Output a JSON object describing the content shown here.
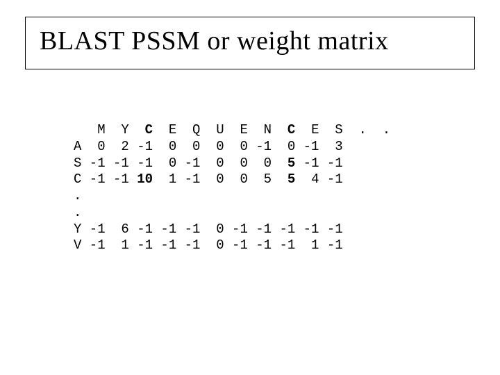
{
  "title": "BLAST PSSM or weight matrix",
  "matrix": {
    "hdr_lead": "   M  Y  ",
    "hdr_C": "C",
    "hdr_mid": "  E  Q  U  E  N  ",
    "hdr_C2": "C",
    "hdr_tail": "  E  S  .  .",
    "rowA": "A  0  2 -1  0  0  0  0 -1  0 -1  3",
    "rowS_lead": "S -1 -1 -1  0 -1  0  0  0  ",
    "rowS_5": "5",
    "rowS_tail": " -1 -1",
    "rowC_lead": "C -1 -1 ",
    "rowC_10": "10",
    "rowC_mid": "  1 -1  0  0  5  ",
    "rowC_5": "5",
    "rowC_tail": "  4 -1",
    "dot1": ".",
    "dot2": ".",
    "rowY": "Y -1  6 -1 -1 -1  0 -1 -1 -1 -1 -1",
    "rowV": "V -1  1 -1 -1 -1  0 -1 -1 -1  1 -1"
  }
}
